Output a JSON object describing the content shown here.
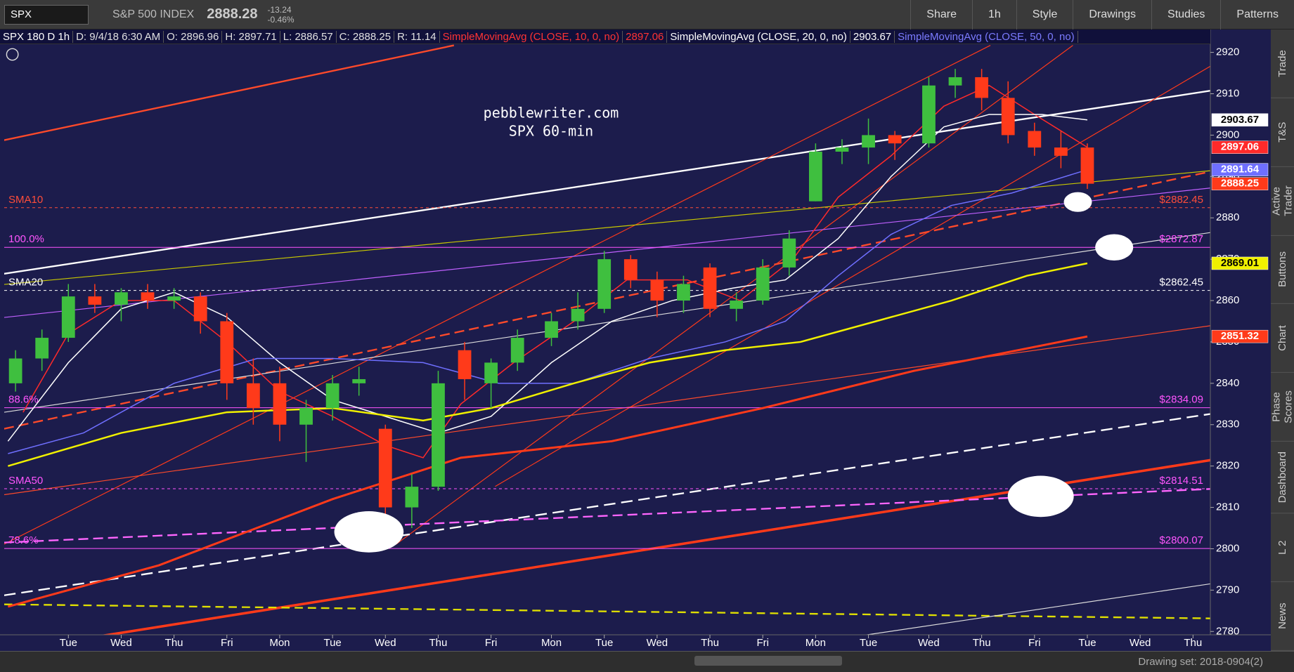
{
  "toolbar": {
    "symbol": "SPX",
    "name": "S&P 500 INDEX",
    "last": "2888.28",
    "change": "-13.24",
    "change_pct": "-0.46%",
    "buttons": [
      "Share",
      "1h",
      "Style",
      "Drawings",
      "Studies",
      "Patterns"
    ]
  },
  "info_bar": [
    {
      "text": "SPX 180 D 1h",
      "color": "#ffffff"
    },
    {
      "text": "D: 9/4/18 6:30 AM",
      "color": "#e0e0e0"
    },
    {
      "text": "O: 2896.96",
      "color": "#e0e0e0"
    },
    {
      "text": "H: 2897.71",
      "color": "#e0e0e0"
    },
    {
      "text": "L: 2886.57",
      "color": "#e0e0e0"
    },
    {
      "text": "C: 2888.25",
      "color": "#e0e0e0"
    },
    {
      "text": "R: 11.14",
      "color": "#e0e0e0"
    },
    {
      "text": "SimpleMovingAvg (CLOSE, 10, 0, no)",
      "color": "#ff3333"
    },
    {
      "text": "2897.06",
      "color": "#ff3333"
    },
    {
      "text": "SimpleMovingAvg (CLOSE, 20, 0, no)",
      "color": "#ffffff"
    },
    {
      "text": "2903.67",
      "color": "#ffffff"
    },
    {
      "text": "SimpleMovingAvg (CLOSE, 50, 0, no)",
      "color": "#7b7bff"
    }
  ],
  "annotation": [
    "pebblewriter.com",
    "SPX 60-min"
  ],
  "sidebar_tabs": [
    "Trade",
    "T&S",
    "Active Trader",
    "Buttons",
    "Chart",
    "Phase Scores",
    "Dashboard",
    "L 2",
    "News"
  ],
  "footer": {
    "drawing_set": "Drawing set: 2018-0904(2)"
  },
  "chart_data": {
    "type": "candlestick",
    "up_color": "#3fbf3f",
    "down_color": "#ff3a1a",
    "x": [
      1,
      4.5,
      8,
      11.5,
      15,
      18.5,
      22,
      25.5,
      29,
      32.5,
      36,
      39.5,
      43,
      46.5,
      50,
      53.5,
      57,
      60.5,
      64,
      67.5,
      72,
      75.5,
      79,
      82.5,
      86,
      89.5,
      93,
      96.5,
      100,
      103.5,
      107,
      110.5,
      114,
      117.5,
      122,
      125.5,
      129,
      132.5,
      136,
      139.5,
      143
    ],
    "open": [
      2840,
      2846,
      2851,
      2861,
      2859,
      2862,
      2860,
      2861,
      2855,
      2840,
      2840,
      2830,
      2834,
      2840,
      2829,
      2810,
      2815,
      2848,
      2840,
      2845,
      2851,
      2855,
      2858,
      2870,
      2865,
      2860,
      2868,
      2858,
      2860,
      2868,
      2884,
      2896,
      2897,
      2900,
      2898,
      2912,
      2914,
      2909,
      2901,
      2897,
      2897
    ],
    "high": [
      2848,
      2853,
      2864,
      2864,
      2863,
      2864,
      2863,
      2862,
      2857,
      2846,
      2844,
      2836,
      2842,
      2844,
      2830,
      2818,
      2843,
      2850,
      2846,
      2853,
      2857,
      2862,
      2872,
      2871,
      2867,
      2866,
      2869,
      2862,
      2870,
      2877,
      2898,
      2899,
      2904,
      2901,
      2914,
      2916,
      2916,
      2913,
      2903,
      2901,
      2898
    ],
    "low": [
      2838,
      2843,
      2850,
      2857,
      2855,
      2858,
      2858,
      2852,
      2836,
      2830,
      2826,
      2821,
      2831,
      2837,
      2806,
      2805,
      2814,
      2836,
      2834,
      2843,
      2849,
      2853,
      2857,
      2863,
      2856,
      2857,
      2856,
      2855,
      2859,
      2866,
      2884,
      2893,
      2893,
      2894,
      2897,
      2909,
      2906,
      2898,
      2895,
      2892,
      2887
    ],
    "close": [
      2846,
      2851,
      2861,
      2859,
      2862,
      2860,
      2861,
      2855,
      2840,
      2834,
      2830,
      2834,
      2840,
      2841,
      2810,
      2815,
      2840,
      2841,
      2845,
      2851,
      2855,
      2858,
      2870,
      2865,
      2860,
      2864,
      2858,
      2860,
      2868,
      2875,
      2896,
      2897,
      2900,
      2898,
      2912,
      2914,
      2909,
      2900,
      2897,
      2895,
      2888.25
    ],
    "series": [
      {
        "name": "SimpleMovingAvg (CLOSE, 10, 0, no)",
        "color": "#ff2a2a",
        "x": [
          2,
          8,
          15,
          22,
          29,
          36,
          43,
          50,
          55,
          60,
          67,
          75,
          82,
          90,
          97,
          104,
          110,
          117,
          124,
          130,
          136,
          143
        ],
        "values": [
          2833,
          2852,
          2860,
          2860,
          2850,
          2838,
          2832,
          2825,
          2822,
          2835,
          2845,
          2855,
          2865,
          2865,
          2860,
          2870,
          2885,
          2895,
          2907,
          2912,
          2905,
          2897.06
        ]
      },
      {
        "name": "SimpleMovingAvg (CLOSE, 20, 0, no)",
        "color": "#ffffff",
        "x": [
          0,
          8,
          15,
          22,
          29,
          36,
          43,
          50,
          57,
          64,
          72,
          80,
          88,
          96,
          103,
          110,
          117,
          124,
          130,
          137,
          143
        ],
        "values": [
          2826,
          2845,
          2858,
          2862,
          2856,
          2845,
          2836,
          2832,
          2828,
          2832,
          2845,
          2855,
          2860,
          2863,
          2865,
          2875,
          2890,
          2902,
          2905,
          2905,
          2903.67
        ]
      },
      {
        "name": "SimpleMovingAvg (CLOSE, 50, 0, no)",
        "color": "#6f6fff",
        "x": [
          0,
          10,
          22,
          33,
          43,
          55,
          65,
          75,
          85,
          95,
          103,
          110,
          117,
          125,
          133,
          143
        ],
        "values": [
          2823,
          2828,
          2840,
          2846,
          2846,
          2845,
          2840,
          2840,
          2846,
          2850,
          2855,
          2866,
          2876,
          2883,
          2886,
          2891.64
        ]
      },
      {
        "color": "#f0f000",
        "x": [
          0,
          15,
          29,
          43,
          55,
          64,
          75,
          85,
          95,
          105,
          115,
          125,
          135,
          143
        ],
        "values": [
          2820,
          2828,
          2833,
          2834,
          2831,
          2834,
          2840,
          2845,
          2848,
          2850,
          2855,
          2860,
          2866,
          2869.01
        ]
      },
      {
        "color": "#ff3a1a",
        "x": [
          0,
          20,
          43,
          60,
          80,
          100,
          120,
          143
        ],
        "values": [
          2786,
          2796,
          2812,
          2822,
          2826,
          2834,
          2843,
          2851.32
        ]
      }
    ],
    "levels": [
      {
        "name": "SMA10",
        "value": 2882.45,
        "label": "$2882.45",
        "color": "#ff4d3a",
        "dash": true
      },
      {
        "name": "100.0%",
        "value": 2872.87,
        "label": "$2872.87",
        "color": "#ff55ff",
        "dash": false
      },
      {
        "name": "SMA20",
        "value": 2862.45,
        "label": "$2862.45",
        "color": "#ffffff",
        "dash": true
      },
      {
        "name": "88.6%",
        "value": 2834.09,
        "label": "$2834.09",
        "color": "#ff55ff",
        "dash": false
      },
      {
        "name": "SMA50",
        "value": 2814.51,
        "label": "$2814.51",
        "color": "#ff55ff",
        "dash": true
      },
      {
        "name": "78.6%",
        "value": 2800.07,
        "label": "$2800.07",
        "color": "#ff55ff",
        "dash": false
      }
    ],
    "xlim": [
      -0.5,
      159.3
    ],
    "xticks": [
      {
        "value": 8,
        "label": "Tue"
      },
      {
        "value": 15,
        "label": "Wed"
      },
      {
        "value": 22,
        "label": "Thu"
      },
      {
        "value": 29,
        "label": "Fri"
      },
      {
        "value": 36,
        "label": "Mon"
      },
      {
        "value": 43,
        "label": "Tue"
      },
      {
        "value": 50,
        "label": "Wed"
      },
      {
        "value": 57,
        "label": "Thu"
      },
      {
        "value": 64,
        "label": "Fri"
      },
      {
        "value": 72,
        "label": "Mon"
      },
      {
        "value": 79,
        "label": "Tue"
      },
      {
        "value": 86,
        "label": "Wed"
      },
      {
        "value": 93,
        "label": "Thu"
      },
      {
        "value": 100,
        "label": "Fri"
      },
      {
        "value": 107,
        "label": "Mon"
      },
      {
        "value": 114,
        "label": "Tue"
      },
      {
        "value": 122,
        "label": "Wed"
      },
      {
        "value": 129,
        "label": "Thu"
      },
      {
        "value": 136,
        "label": "Fri"
      },
      {
        "value": 143,
        "label": "Tue"
      },
      {
        "value": 150,
        "label": "Wed"
      },
      {
        "value": 157,
        "label": "Thu"
      }
    ],
    "ylim": [
      2779.2,
      2921.8
    ],
    "yticks": [
      2780,
      2790,
      2800,
      2810,
      2820,
      2830,
      2840,
      2850,
      2860,
      2870,
      2880,
      2890,
      2900,
      2910,
      2920
    ]
  }
}
